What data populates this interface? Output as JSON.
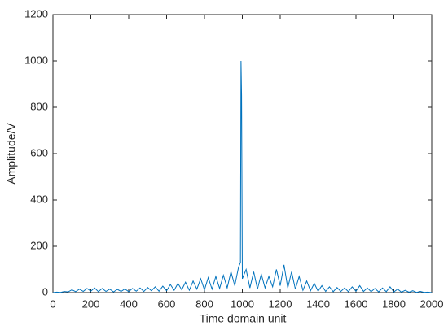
{
  "chart_data": {
    "type": "line",
    "xlabel": "Time domain unit",
    "ylabel": "Amplitude/V",
    "xlim": [
      0,
      2000
    ],
    "xticks": [
      0,
      200,
      400,
      600,
      800,
      1000,
      1200,
      1400,
      1600,
      1800,
      2000
    ],
    "ylim": [
      0,
      1200
    ],
    "yticks": [
      0,
      200,
      400,
      600,
      800,
      1000,
      1200
    ],
    "grid": false,
    "x": [
      0,
      20,
      40,
      60,
      80,
      100,
      120,
      140,
      160,
      180,
      200,
      220,
      240,
      260,
      280,
      300,
      320,
      340,
      360,
      380,
      400,
      420,
      440,
      460,
      480,
      500,
      520,
      540,
      560,
      580,
      600,
      620,
      640,
      660,
      680,
      700,
      720,
      740,
      760,
      780,
      800,
      820,
      840,
      860,
      880,
      900,
      920,
      940,
      960,
      980,
      990,
      993,
      996,
      1000,
      1020,
      1040,
      1060,
      1080,
      1100,
      1120,
      1140,
      1160,
      1180,
      1200,
      1220,
      1240,
      1260,
      1280,
      1300,
      1320,
      1340,
      1360,
      1380,
      1400,
      1420,
      1440,
      1460,
      1480,
      1500,
      1520,
      1540,
      1560,
      1580,
      1600,
      1620,
      1640,
      1660,
      1680,
      1700,
      1720,
      1740,
      1760,
      1780,
      1800,
      1820,
      1840,
      1860,
      1880,
      1900,
      1920,
      1940,
      1960,
      1980,
      2000
    ],
    "series": [
      {
        "color": "#0072bd",
        "values": [
          0,
          2,
          1,
          5,
          3,
          12,
          4,
          15,
          5,
          18,
          6,
          20,
          4,
          18,
          5,
          15,
          3,
          14,
          5,
          16,
          4,
          18,
          6,
          20,
          5,
          22,
          8,
          25,
          6,
          28,
          8,
          35,
          10,
          40,
          12,
          45,
          10,
          50,
          15,
          60,
          12,
          65,
          15,
          70,
          18,
          75,
          20,
          90,
          30,
          110,
          130,
          1000,
          850,
          60,
          100,
          20,
          90,
          15,
          80,
          20,
          70,
          25,
          100,
          30,
          120,
          20,
          90,
          15,
          70,
          10,
          50,
          8,
          40,
          6,
          30,
          5,
          25,
          4,
          22,
          5,
          20,
          4,
          25,
          6,
          30,
          5,
          20,
          4,
          18,
          3,
          20,
          4,
          25,
          3,
          15,
          2,
          10,
          2,
          8,
          1,
          5,
          1,
          2,
          0
        ]
      }
    ]
  }
}
